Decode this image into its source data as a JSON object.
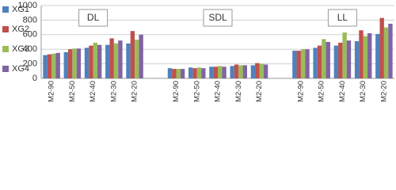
{
  "chart_data": {
    "type": "bar",
    "categories": [
      "M2-90",
      "M2-50",
      "M2-40",
      "M2-30",
      "M2-20",
      null,
      "M2-90",
      "M2-50",
      "M2-40",
      "M2-30",
      "M2-20",
      null,
      "M2-90",
      "M2-50",
      "M2-40",
      "M2-30",
      "M2-20"
    ],
    "series": [
      {
        "name": "XG1",
        "color": "#4f81bd",
        "values": [
          320,
          360,
          420,
          460,
          480,
          null,
          140,
          150,
          160,
          170,
          180,
          null,
          380,
          420,
          450,
          510,
          610
        ]
      },
      {
        "name": "XG2",
        "color": "#c0504d",
        "values": [
          330,
          400,
          450,
          550,
          650,
          null,
          130,
          140,
          160,
          190,
          210,
          null,
          380,
          450,
          490,
          660,
          830
        ]
      },
      {
        "name": "XG3",
        "color": "#9bbb59",
        "values": [
          340,
          410,
          490,
          480,
          530,
          null,
          130,
          150,
          170,
          180,
          200,
          null,
          400,
          540,
          630,
          580,
          700
        ]
      },
      {
        "name": "XG4",
        "color": "#8064a2",
        "values": [
          350,
          410,
          460,
          520,
          600,
          null,
          130,
          140,
          160,
          180,
          190,
          null,
          400,
          500,
          520,
          620,
          750
        ]
      }
    ],
    "annotations": [
      "DL",
      "SDL",
      "LL"
    ],
    "ylim": [
      0,
      1000
    ],
    "yticks": [
      0,
      200,
      400,
      600,
      800,
      1000
    ],
    "grid": true,
    "legend": "left"
  }
}
